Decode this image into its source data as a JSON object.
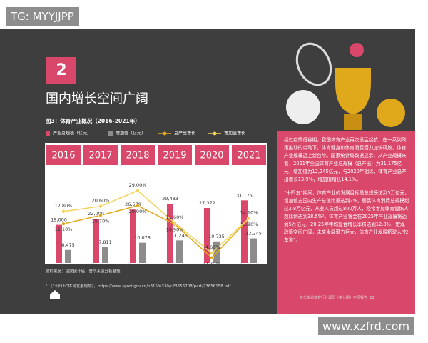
{
  "watermark": "TG: MYYJJPP",
  "badge": "2",
  "heading": "国内增长空间广阔",
  "chart_data": {
    "type": "bar",
    "title": "图3：体育产业概况（2016-2021年）",
    "categories": [
      "2016",
      "2017",
      "2018",
      "2019",
      "2020",
      "2021"
    ],
    "series": [
      {
        "name": "产业总规模（亿元）",
        "color": "#d9476a",
        "values": [
          19000,
          22000,
          26579,
          29483,
          27372,
          31175
        ],
        "value_labels": [
          "19,000",
          "22,000",
          "26,579",
          "29,483",
          "27,372",
          "31,175"
        ]
      },
      {
        "name": "增加值（亿元）",
        "color": "#8c8c8c",
        "values": [
          6475,
          7811,
          10078,
          11248,
          10735,
          12245
        ],
        "value_labels": [
          "6,475",
          "7,811",
          "10,078",
          "11,248",
          "10,735",
          "12,245"
        ]
      },
      {
        "name": "总产出增长",
        "type": "line",
        "axis": "y2",
        "color": "#e0a91b",
        "values": [
          11.1,
          15.7,
          20.9,
          10.9,
          -7.2,
          13.9
        ],
        "value_labels": [
          "11.10%",
          "15.70%",
          "20.90%",
          "10.90%",
          "-7.20%",
          "13.90%"
        ]
      },
      {
        "name": "增加值增长",
        "type": "line",
        "axis": "y2",
        "color": "#f3d35a",
        "values": [
          17.8,
          20.6,
          29.0,
          11.6,
          -4.6,
          14.1
        ],
        "value_labels": [
          "17.80%",
          "20.60%",
          "29.00%",
          "11.60%",
          "-4.60%",
          "14.10%"
        ]
      }
    ],
    "ylim": [
      0,
      48000
    ],
    "y2lim": [
      -10,
      42
    ],
    "source": "资料来源：国家统计局，普华永道分析整理"
  },
  "body": {
    "paragraphs": [
      "经过疫情低谷期，我国体育产业再次迅猛起航，在一系列政策推动的带动下，体育健身和体育消费潜力加快释放，体育产业规模迈上新台阶。国家统计局数据显示，从产业规模来看，2021年全国体育产业总规模（总产出）为31,175亿元，增加值为12,245亿元，与2020年相比，体育产业总产出增长13.9%，增加值增长14.1%。",
      "“十四五”期间，体育产业的发展目标是总规模达到5万亿元，增加值占国内生产总值比重达到2%，居民体育消费总规模超过2.8万亿元，从业人员超过800万人，经常参加体育锻炼人数比例达到38.5%²。体育产业将会在2025年产业规模将迈到5万亿元，20-25年年均复合增长率将达到12.8%，宏观政策空间广阔，未来发展潜力巨大，体育产业发展将驶入“快车道”。"
    ]
  },
  "footnote": "² 《“十四五”体育发展规划》，https://www.sport.gov.cn/n315/n330/c23656708/part/23656158.pdf",
  "footer": {
    "text": "普华永道体育行业调研（第七期）中国报告",
    "page": "15"
  },
  "site_watermark": "www.xzfrd.com"
}
